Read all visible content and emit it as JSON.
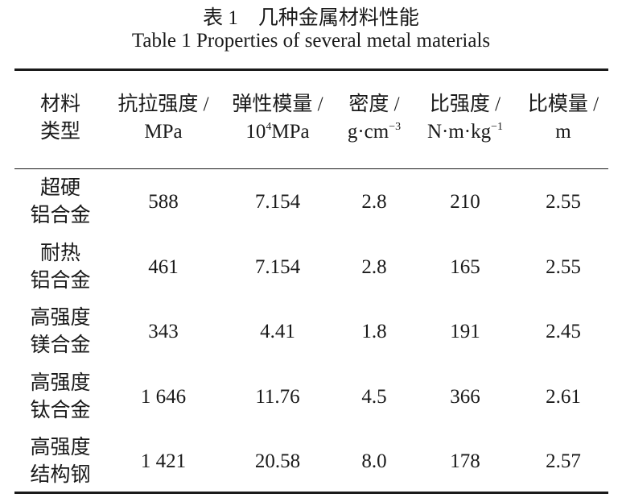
{
  "caption": {
    "cn": "表 1　几种金属材料性能",
    "en": "Table 1 Properties of several metal materials"
  },
  "headers": [
    {
      "line1": "材料",
      "line2": "类型"
    },
    {
      "line1": "抗拉强度 /",
      "line2": "MPa"
    },
    {
      "line1": "弹性模量 /",
      "line2": "MPa",
      "prefix": "10",
      "sup": "4"
    },
    {
      "line1": "密度 /",
      "line2": "g·cm",
      "sup": "−3"
    },
    {
      "line1": "比强度 /",
      "line2": "N·m·kg",
      "sup": "−1"
    },
    {
      "line1": "比模量 /",
      "line2": "m"
    }
  ],
  "rows": [
    {
      "type1": "超硬",
      "type2": "铝合金",
      "tensile": "588",
      "modulus": "7.154",
      "density": "2.8",
      "spec_strength": "210",
      "spec_modulus": "2.55"
    },
    {
      "type1": "耐热",
      "type2": "铝合金",
      "tensile": "461",
      "modulus": "7.154",
      "density": "2.8",
      "spec_strength": "165",
      "spec_modulus": "2.55"
    },
    {
      "type1": "高强度",
      "type2": "镁合金",
      "tensile": "343",
      "modulus": "4.41",
      "density": "1.8",
      "spec_strength": "191",
      "spec_modulus": "2.45"
    },
    {
      "type1": "高强度",
      "type2": "钛合金",
      "tensile": "1 646",
      "modulus": "11.76",
      "density": "4.5",
      "spec_strength": "366",
      "spec_modulus": "2.61"
    },
    {
      "type1": "高强度",
      "type2": "结构钢",
      "tensile": "1 421",
      "modulus": "20.58",
      "density": "8.0",
      "spec_strength": "178",
      "spec_modulus": "2.57"
    }
  ]
}
